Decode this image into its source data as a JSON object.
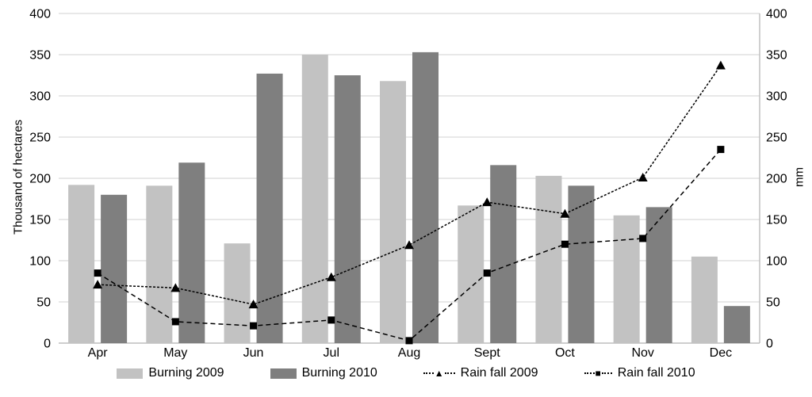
{
  "chart_data": {
    "type": "bar+line combo",
    "title": "",
    "categories": [
      "Apr",
      "May",
      "Jun",
      "Jul",
      "Aug",
      "Sept",
      "Oct",
      "Nov",
      "Dec"
    ],
    "series": [
      {
        "name": "Burning 2009",
        "type": "bar",
        "color": "#c2c2c2",
        "values": [
          192,
          191,
          121,
          350,
          318,
          167,
          203,
          155,
          105
        ]
      },
      {
        "name": "Burning 2010",
        "type": "bar",
        "color": "#7f7f7f",
        "values": [
          180,
          219,
          327,
          325,
          353,
          216,
          191,
          165,
          45
        ]
      },
      {
        "name": "Rain fall 2009",
        "type": "line",
        "marker": "triangle",
        "color": "#000000",
        "dash": "3 2",
        "values": [
          71,
          67,
          47,
          80,
          119,
          171,
          157,
          201,
          337
        ]
      },
      {
        "name": "Rain fall 2010",
        "type": "line",
        "marker": "square",
        "color": "#000000",
        "dash": "6 4",
        "values": [
          85,
          26,
          21,
          28,
          3,
          85,
          120,
          127,
          235
        ]
      }
    ],
    "left_axis": {
      "title": "Thousand of hectares",
      "min": 0,
      "max": 400,
      "ticks": [
        0,
        50,
        100,
        150,
        200,
        250,
        300,
        350,
        400
      ]
    },
    "right_axis": {
      "title": "mm",
      "min": 0,
      "max": 400,
      "ticks": [
        0,
        50,
        100,
        150,
        200,
        250,
        300,
        350,
        400
      ]
    },
    "grid": true,
    "legend_position": "bottom",
    "style": {
      "grid_color": "#d9d9d9",
      "axis_color": "#b7b7b7",
      "text_color": "#000000"
    }
  },
  "legend": {
    "items": [
      "Burning 2009",
      "Burning 2010",
      "Rain fall 2009",
      "Rain fall 2010"
    ]
  }
}
